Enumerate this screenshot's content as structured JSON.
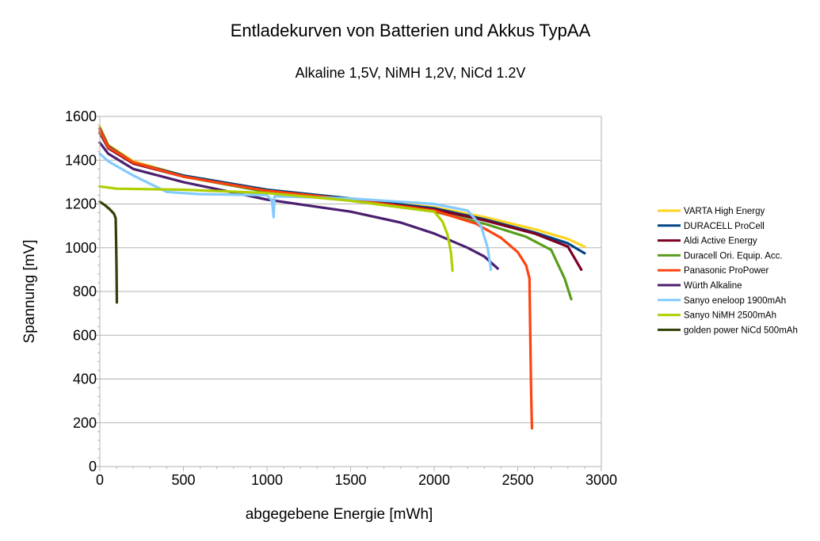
{
  "chart_data": {
    "type": "line",
    "title": "Entladekurven von Batterien und Akkus TypAA",
    "subtitle": "Alkaline 1,5V,  NiMH 1,2V, NiCd 1.2V",
    "xlabel": "abgegebene Energie [mWh]",
    "ylabel": "Spannung [mV]",
    "xlim": [
      0,
      3000
    ],
    "ylim": [
      0,
      1600
    ],
    "xticks": [
      0,
      500,
      1000,
      1500,
      2000,
      2500,
      3000
    ],
    "yticks": [
      0,
      200,
      400,
      600,
      800,
      1000,
      1200,
      1400,
      1600
    ],
    "grid": true,
    "legend_position": "right",
    "series": [
      {
        "name": "VARTA High Energy",
        "color": "#ffd320",
        "points": [
          [
            0,
            1555
          ],
          [
            50,
            1470
          ],
          [
            200,
            1395
          ],
          [
            500,
            1330
          ],
          [
            1000,
            1265
          ],
          [
            1500,
            1225
          ],
          [
            2000,
            1185
          ],
          [
            2300,
            1140
          ],
          [
            2600,
            1085
          ],
          [
            2800,
            1040
          ],
          [
            2900,
            1005
          ]
        ]
      },
      {
        "name": "DURACELL ProCell",
        "color": "#004586",
        "points": [
          [
            0,
            1545
          ],
          [
            50,
            1465
          ],
          [
            200,
            1390
          ],
          [
            500,
            1330
          ],
          [
            1000,
            1265
          ],
          [
            1500,
            1225
          ],
          [
            2000,
            1180
          ],
          [
            2300,
            1130
          ],
          [
            2600,
            1070
          ],
          [
            2800,
            1020
          ],
          [
            2900,
            975
          ]
        ]
      },
      {
        "name": "Aldi Active Energy",
        "color": "#7e0021",
        "points": [
          [
            0,
            1525
          ],
          [
            50,
            1455
          ],
          [
            200,
            1385
          ],
          [
            500,
            1325
          ],
          [
            1000,
            1260
          ],
          [
            1500,
            1220
          ],
          [
            2000,
            1175
          ],
          [
            2300,
            1125
          ],
          [
            2600,
            1065
          ],
          [
            2800,
            1005
          ],
          [
            2880,
            900
          ]
        ]
      },
      {
        "name": "Duracell Ori. Equip. Acc.",
        "color": "#579d1c",
        "points": [
          [
            0,
            1535
          ],
          [
            50,
            1460
          ],
          [
            200,
            1390
          ],
          [
            500,
            1325
          ],
          [
            1000,
            1255
          ],
          [
            1500,
            1215
          ],
          [
            2000,
            1165
          ],
          [
            2300,
            1110
          ],
          [
            2550,
            1050
          ],
          [
            2700,
            990
          ],
          [
            2780,
            860
          ],
          [
            2820,
            765
          ]
        ]
      },
      {
        "name": "Panasonic ProPower",
        "color": "#ff420e",
        "points": [
          [
            0,
            1540
          ],
          [
            50,
            1460
          ],
          [
            200,
            1390
          ],
          [
            500,
            1325
          ],
          [
            1000,
            1260
          ],
          [
            1500,
            1220
          ],
          [
            2000,
            1170
          ],
          [
            2250,
            1110
          ],
          [
            2400,
            1045
          ],
          [
            2500,
            980
          ],
          [
            2550,
            920
          ],
          [
            2570,
            860
          ],
          [
            2575,
            600
          ],
          [
            2580,
            340
          ],
          [
            2585,
            175
          ]
        ]
      },
      {
        "name": "Würth Alkaline",
        "color": "#4b1f6f",
        "points": [
          [
            0,
            1480
          ],
          [
            50,
            1430
          ],
          [
            200,
            1360
          ],
          [
            500,
            1300
          ],
          [
            1000,
            1220
          ],
          [
            1500,
            1165
          ],
          [
            1800,
            1115
          ],
          [
            2000,
            1065
          ],
          [
            2200,
            1000
          ],
          [
            2300,
            960
          ],
          [
            2380,
            905
          ]
        ]
      },
      {
        "name": "Sanyo eneloop 1900mAh",
        "color": "#83caff",
        "points": [
          [
            0,
            1430
          ],
          [
            50,
            1395
          ],
          [
            200,
            1330
          ],
          [
            400,
            1255
          ],
          [
            600,
            1245
          ],
          [
            1000,
            1240
          ],
          [
            1030,
            1215
          ],
          [
            1040,
            1140
          ],
          [
            1045,
            1235
          ],
          [
            1500,
            1225
          ],
          [
            2000,
            1200
          ],
          [
            2200,
            1170
          ],
          [
            2280,
            1100
          ],
          [
            2320,
            1000
          ],
          [
            2340,
            900
          ]
        ]
      },
      {
        "name": "Sanyo NiMH 2500mAh",
        "color": "#aecf00",
        "points": [
          [
            0,
            1280
          ],
          [
            100,
            1270
          ],
          [
            500,
            1265
          ],
          [
            1000,
            1250
          ],
          [
            1500,
            1215
          ],
          [
            2000,
            1165
          ],
          [
            2050,
            1120
          ],
          [
            2080,
            1060
          ],
          [
            2100,
            980
          ],
          [
            2110,
            895
          ]
        ]
      },
      {
        "name": "golden power NiCd 500mAh",
        "color": "#314004",
        "points": [
          [
            0,
            1210
          ],
          [
            30,
            1195
          ],
          [
            60,
            1175
          ],
          [
            85,
            1155
          ],
          [
            95,
            1135
          ],
          [
            98,
            1000
          ],
          [
            100,
            900
          ],
          [
            102,
            750
          ]
        ]
      }
    ]
  }
}
